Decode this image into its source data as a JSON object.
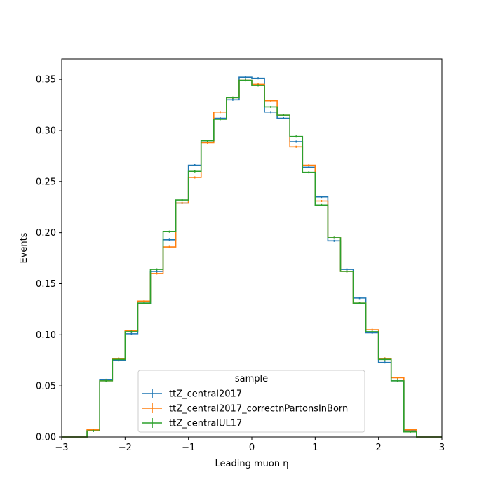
{
  "chart_data": {
    "type": "line",
    "title": "",
    "xlabel": "Leading muon η",
    "ylabel": "Events",
    "xlim": [
      -3,
      3
    ],
    "ylim": [
      0,
      0.37
    ],
    "x_ticks": [
      "−3",
      "−2",
      "−1",
      "0",
      "1",
      "2",
      "3"
    ],
    "y_ticks": [
      "0.00",
      "0.05",
      "0.10",
      "0.15",
      "0.20",
      "0.25",
      "0.30",
      "0.35"
    ],
    "bin_edges": [
      -3.0,
      -2.8,
      -2.6,
      -2.4,
      -2.2,
      -2.0,
      -1.8,
      -1.6,
      -1.4,
      -1.2,
      -1.0,
      -0.8,
      -0.6,
      -0.4,
      -0.2,
      0.0,
      0.2,
      0.4,
      0.6,
      0.8,
      1.0,
      1.2,
      1.4,
      1.6,
      1.8,
      2.0,
      2.2,
      2.4,
      2.6,
      2.8,
      3.0
    ],
    "legend_title": "sample",
    "legend_position": "lower center",
    "grid": false,
    "series": [
      {
        "name": "ttZ_central2017",
        "color": "#1f77b4",
        "values": [
          0.0,
          0.0,
          0.006,
          0.056,
          0.075,
          0.101,
          0.131,
          0.162,
          0.193,
          0.229,
          0.266,
          0.29,
          0.312,
          0.33,
          0.352,
          0.351,
          0.318,
          0.312,
          0.289,
          0.264,
          0.235,
          0.192,
          0.164,
          0.136,
          0.102,
          0.073,
          0.055,
          0.006,
          0.0,
          0.0
        ]
      },
      {
        "name": "ttZ_central2017_correctnPartonsInBorn",
        "color": "#ff7f0e",
        "values": [
          0.0,
          0.0,
          0.007,
          0.055,
          0.077,
          0.104,
          0.133,
          0.16,
          0.186,
          0.229,
          0.254,
          0.288,
          0.318,
          0.332,
          0.349,
          0.345,
          0.329,
          0.315,
          0.284,
          0.266,
          0.231,
          0.195,
          0.162,
          0.131,
          0.105,
          0.077,
          0.058,
          0.007,
          0.0,
          0.0
        ]
      },
      {
        "name": "ttZ_centralUL17",
        "color": "#2ca02c",
        "values": [
          0.0,
          0.0,
          0.006,
          0.055,
          0.076,
          0.103,
          0.131,
          0.164,
          0.201,
          0.232,
          0.26,
          0.29,
          0.311,
          0.332,
          0.349,
          0.344,
          0.323,
          0.315,
          0.294,
          0.259,
          0.227,
          0.195,
          0.162,
          0.131,
          0.103,
          0.076,
          0.055,
          0.005,
          0.0,
          0.0
        ]
      }
    ]
  }
}
